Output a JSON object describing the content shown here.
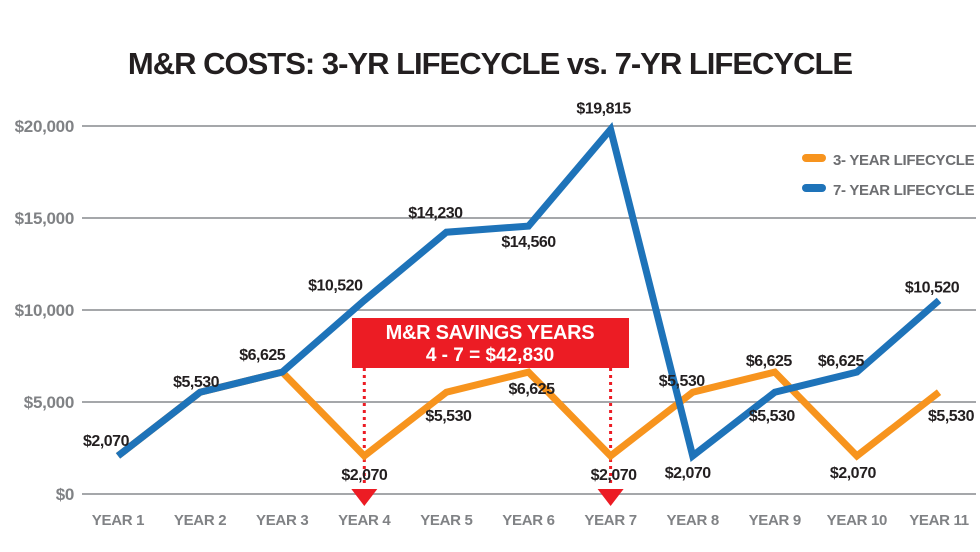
{
  "title": "M&R COSTS: 3-YR LIFECYCLE vs. 7-YR LIFECYCLE",
  "colors": {
    "orange": "#F7941E",
    "blue": "#1E73B9",
    "red": "#EC1C24",
    "axis_text": "#808285",
    "label_text": "#231F20",
    "legend_text": "#6D6E71",
    "gridline": "#A5A7AA"
  },
  "legend": {
    "items": [
      {
        "label": "3- YEAR LIFECYCLE",
        "color": "#F7941E"
      },
      {
        "label": "7- YEAR LIFECYCLE",
        "color": "#1E73B9"
      }
    ]
  },
  "annotation": {
    "line1": "M&R SAVINGS YEARS",
    "line2": "4 - 7 = $42,830",
    "start_category": "YEAR 4",
    "end_category": "YEAR 7"
  },
  "chart_data": {
    "type": "line",
    "title": "M&R COSTS: 3-YR LIFECYCLE vs. 7-YR LIFECYCLE",
    "categories": [
      "YEAR 1",
      "YEAR 2",
      "YEAR 3",
      "YEAR 4",
      "YEAR 5",
      "YEAR 6",
      "YEAR 7",
      "YEAR 8",
      "YEAR 9",
      "YEAR 10",
      "YEAR 11"
    ],
    "series": [
      {
        "name": "3- YEAR LIFECYCLE",
        "color": "#F7941E",
        "values": [
          2070,
          5530,
          6625,
          2070,
          5530,
          6625,
          2070,
          5530,
          6625,
          2070,
          5530
        ],
        "point_labels": [
          null,
          null,
          null,
          "$2,070",
          "$5,530",
          "$6,625",
          "$2,070",
          "$5,530",
          "$6,625",
          "$2,070",
          "$5,530"
        ]
      },
      {
        "name": "7- YEAR LIFECYCLE",
        "color": "#1E73B9",
        "values": [
          2070,
          5530,
          6625,
          10520,
          14230,
          14560,
          19815,
          2070,
          5530,
          6625,
          10520
        ],
        "point_labels": [
          "$2,070",
          "$5,530",
          "$6,625",
          "$10,520",
          "$14,230",
          "$14,560",
          "$19,815",
          "$2,070",
          "$5,530",
          "$6,625",
          "$10,520"
        ]
      }
    ],
    "y_ticks": [
      {
        "value": 0,
        "label": "$0"
      },
      {
        "value": 5000,
        "label": "$5,000"
      },
      {
        "value": 10000,
        "label": "$10,000"
      },
      {
        "value": 15000,
        "label": "$15,000"
      },
      {
        "value": 20000,
        "label": "$20,000"
      }
    ],
    "ylim": [
      0,
      20000
    ],
    "grid": "horizontal",
    "legend_position": "upper-right",
    "annotation": {
      "text_line1": "M&R SAVINGS YEARS",
      "text_line2": "4 - 7 = $42,830",
      "arrows_at": [
        "YEAR 4",
        "YEAR 7"
      ],
      "arrow_point_value": 2070
    }
  }
}
